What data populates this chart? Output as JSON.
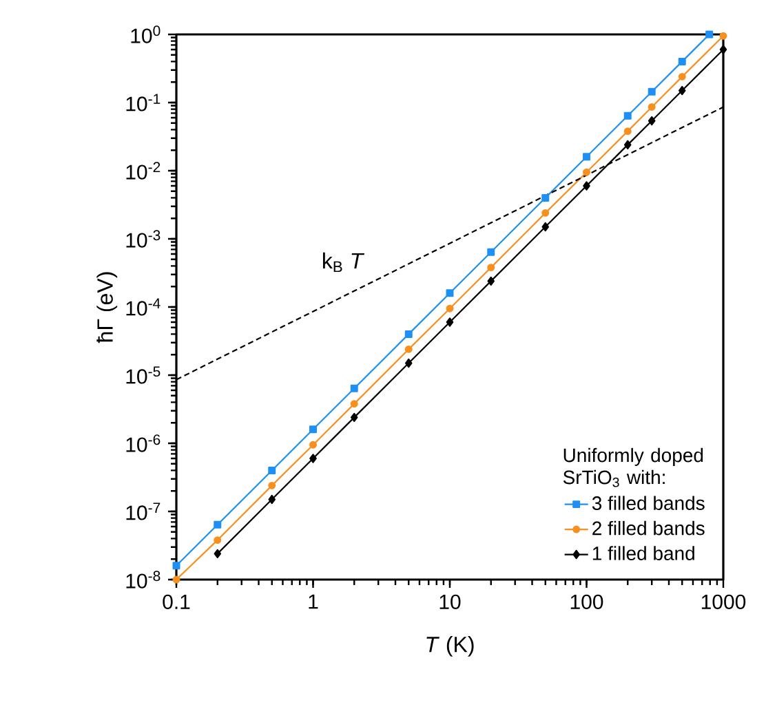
{
  "chart_data": {
    "type": "line",
    "xlabel": "*T* (K)",
    "ylabel": "ħΓ (eV)",
    "legend_title": "Uniformly doped SrTiO$_{3}$ with:",
    "log": "xy",
    "legend": "bottom right",
    "xlim": [
      0.1,
      1000
    ],
    "xticks": [
      0.1,
      1,
      10,
      100,
      1000
    ],
    "ylim": [
      1e-08,
      1
    ],
    "yticks": [
      {
        "value": 1e-08,
        "label": "10$^{-8}$"
      },
      {
        "value": 1e-07,
        "label": "10$^{-7}$"
      },
      {
        "value": 1e-06,
        "label": "10$^{-6}$"
      },
      {
        "value": 1e-05,
        "label": "10$^{-5}$"
      },
      {
        "value": 0.0001,
        "label": "10$^{-4}$"
      },
      {
        "value": 0.001,
        "label": "10$^{-3}$"
      },
      {
        "value": 0.01,
        "label": "10$^{-2}$"
      },
      {
        "value": 0.1,
        "label": "10$^{-1}$"
      },
      {
        "value": 1,
        "label": "10$^{0}$"
      }
    ],
    "series": [
      {
        "name": "3 filled bands",
        "color": "#1e90f5",
        "marker": "square",
        "x": [
          0.1,
          0.2,
          0.5,
          1,
          2,
          5,
          10,
          20,
          50,
          100,
          200,
          300,
          500,
          790
        ],
        "values": [
          1.6e-08,
          6.4e-08,
          4e-07,
          1.6e-06,
          6.4e-06,
          4e-05,
          0.00016,
          0.00064,
          0.004,
          0.016,
          0.064,
          0.144,
          0.4,
          1.0
        ]
      },
      {
        "name": "2 filled bands",
        "color": "#f7901e",
        "marker": "circle",
        "x": [
          0.1,
          0.2,
          0.5,
          1,
          2,
          5,
          10,
          20,
          50,
          100,
          200,
          300,
          500,
          1000
        ],
        "values": [
          1e-08,
          3.8e-08,
          2.4e-07,
          9.5e-07,
          3.8e-06,
          2.4e-05,
          9.5e-05,
          0.00038,
          0.0024,
          0.0095,
          0.038,
          0.086,
          0.24,
          0.95
        ]
      },
      {
        "name": "1 filled band",
        "color": "#000000",
        "marker": "diamond",
        "x": [
          0.2,
          0.5,
          1,
          2,
          5,
          10,
          20,
          50,
          100,
          200,
          300,
          500,
          1000
        ],
        "values": [
          2.4e-08,
          1.5e-07,
          6e-07,
          2.4e-06,
          1.5e-05,
          6e-05,
          0.00024,
          0.0015,
          0.006,
          0.024,
          0.054,
          0.15,
          0.6
        ]
      },
      {
        "name": "k$_{B}$ *T*",
        "color": "#000000",
        "marker": "none",
        "line_style": "dashed",
        "x": [
          0.1,
          1000
        ],
        "values": [
          8.6e-06,
          0.086
        ]
      }
    ]
  }
}
